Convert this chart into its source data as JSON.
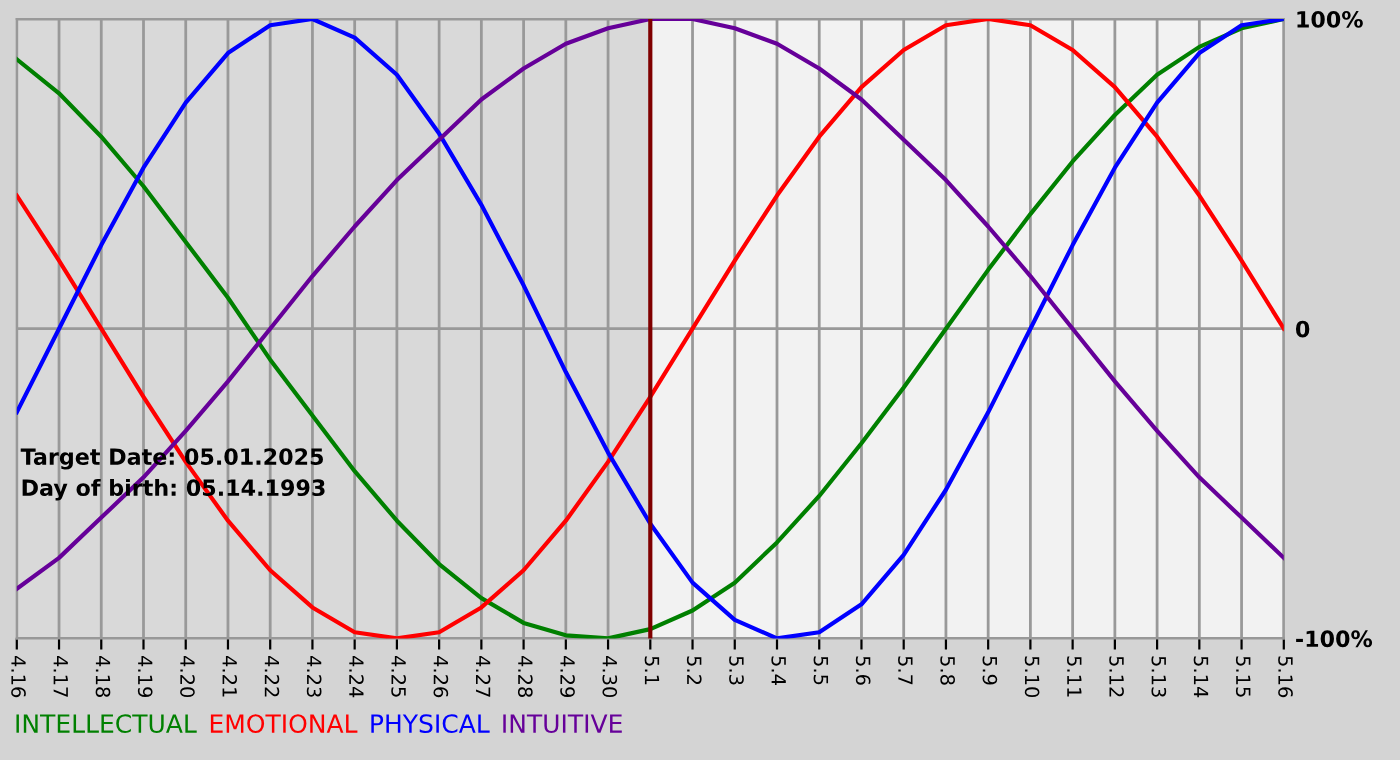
{
  "chart_data": {
    "type": "line",
    "categories": [
      "4.16",
      "4.17",
      "4.18",
      "4.19",
      "4.20",
      "4.21",
      "4.22",
      "4.23",
      "4.24",
      "4.25",
      "4.26",
      "4.27",
      "4.28",
      "4.29",
      "4.30",
      "5.1",
      "5.2",
      "5.3",
      "5.4",
      "5.5",
      "5.6",
      "5.7",
      "5.8",
      "5.9",
      "5.10",
      "5.11",
      "5.12",
      "5.13",
      "5.14",
      "5.15",
      "5.16"
    ],
    "series": [
      {
        "name": "INTELLECTUAL",
        "color": "#008000",
        "values": [
          87,
          76,
          62,
          46,
          28,
          10,
          -10,
          -28,
          -46,
          -62,
          -76,
          -87,
          -95,
          -99,
          -100,
          -97,
          -91,
          -82,
          -69,
          -54,
          -37,
          -19,
          0,
          19,
          37,
          54,
          69,
          82,
          91,
          97,
          100
        ]
      },
      {
        "name": "EMOTIONAL",
        "color": "#ff0000",
        "values": [
          43,
          22,
          0,
          -22,
          -43,
          -62,
          -78,
          -90,
          -98,
          -100,
          -98,
          -90,
          -78,
          -62,
          -43,
          -22,
          0,
          22,
          43,
          62,
          78,
          90,
          98,
          100,
          98,
          90,
          78,
          62,
          43,
          22,
          0
        ]
      },
      {
        "name": "PHYSICAL",
        "color": "#0000ff",
        "values": [
          -27,
          0,
          27,
          52,
          73,
          89,
          98,
          100,
          94,
          82,
          63,
          40,
          14,
          -14,
          -40,
          -63,
          -82,
          -94,
          -100,
          -98,
          -89,
          -73,
          -52,
          -27,
          0,
          27,
          52,
          73,
          89,
          98,
          100
        ]
      },
      {
        "name": "INTUITIVE",
        "color": "#660099",
        "values": [
          -84,
          -74,
          -61,
          -48,
          -33,
          -17,
          0,
          17,
          33,
          48,
          61,
          74,
          84,
          92,
          97,
          100,
          100,
          97,
          92,
          84,
          74,
          61,
          48,
          33,
          17,
          0,
          -17,
          -33,
          -48,
          -61,
          -74
        ]
      }
    ],
    "ylim": [
      -100,
      100
    ],
    "yticks": [
      {
        "value": 100,
        "label": "100%"
      },
      0,
      {
        "value": -100,
        "label": "-100%"
      }
    ],
    "ref_lines": [
      {
        "axis": "x",
        "value": "5.1",
        "color": "#800000"
      }
    ],
    "bands": [
      {
        "axis": "x",
        "from": "4.16",
        "to": "5.1",
        "color": "#d9d9d9"
      }
    ],
    "grid": true,
    "legend": "bottom left",
    "annotations": [
      "Target Date: 05.01.2025",
      "Day of birth: 05.14.1993"
    ]
  }
}
